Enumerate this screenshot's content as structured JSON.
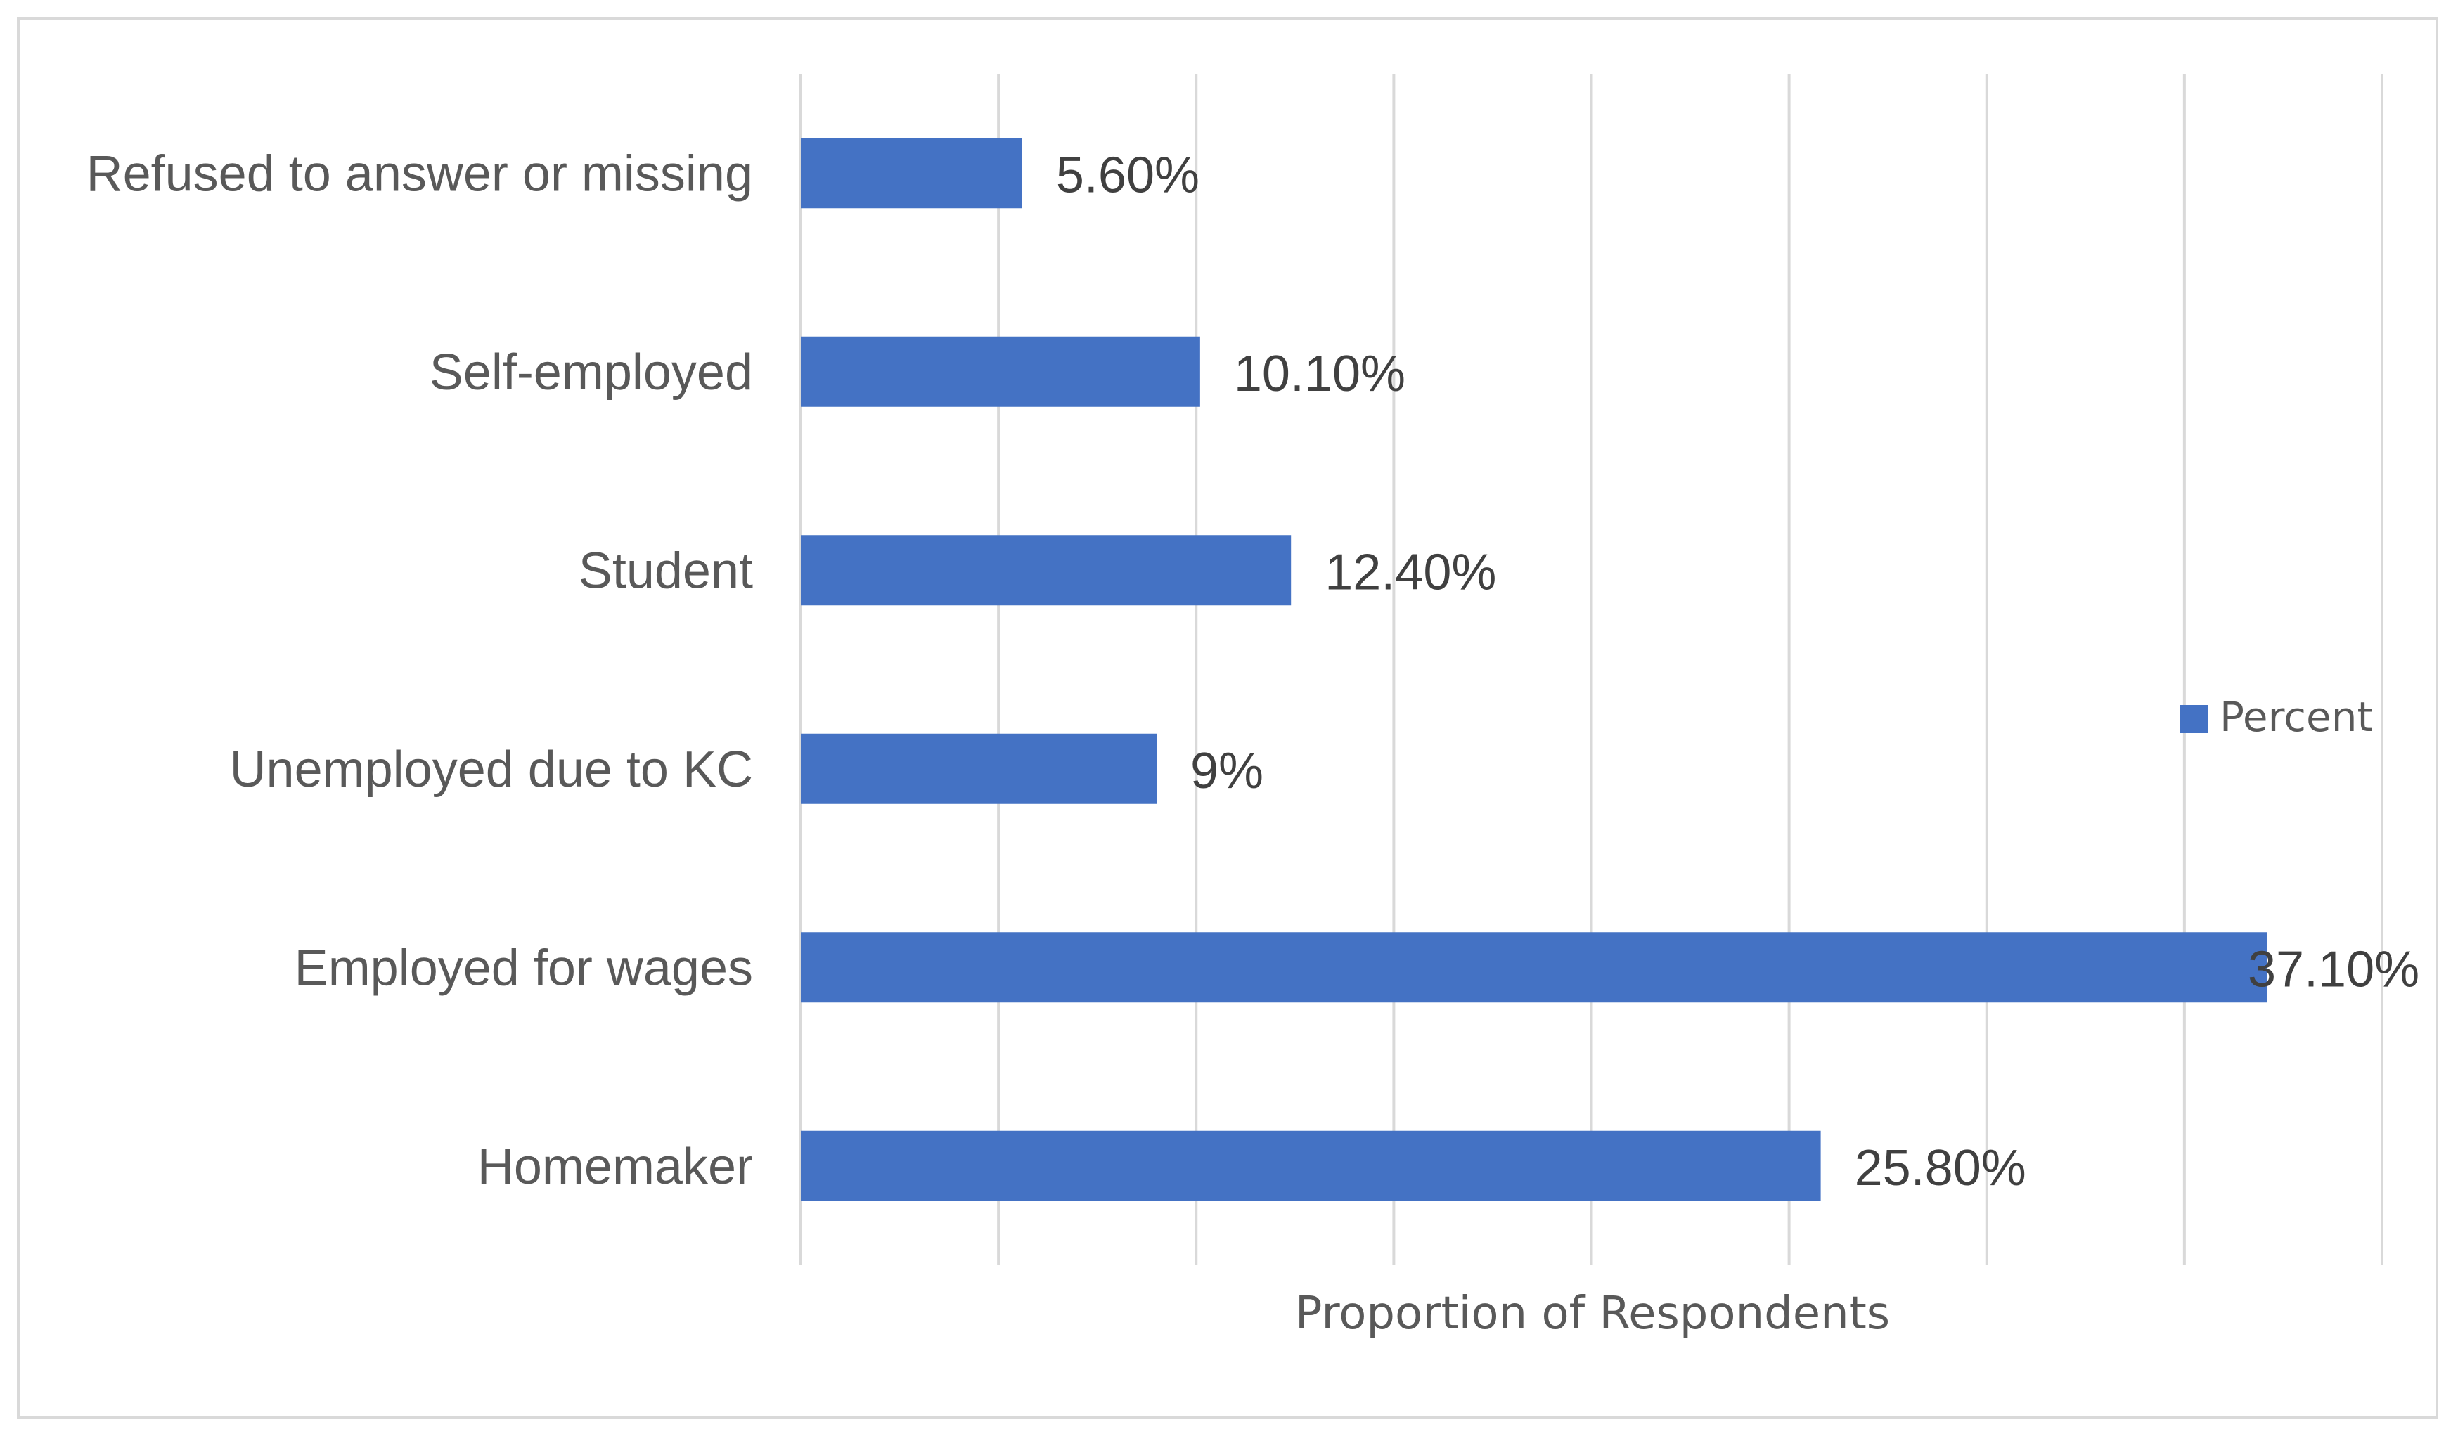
{
  "chart_data": {
    "type": "bar",
    "orientation": "horizontal",
    "categories": [
      "Refused to answer or missing",
      "Self-employed",
      "Student",
      "Unemployed due to KC",
      "Employed for wages",
      "Homemaker"
    ],
    "series": [
      {
        "name": "Percent",
        "values": [
          5.6,
          10.1,
          12.4,
          9,
          37.1,
          25.8
        ],
        "labels": [
          "5.60%",
          "10.10%",
          "12.40%",
          "9%",
          "37.10%",
          "25.80%"
        ],
        "color": "#4472C4"
      }
    ],
    "xlabel": "Proportion of Respondents",
    "ylabel": "",
    "xlim": [
      0,
      40
    ],
    "x_gridline_step": 5,
    "grid": true,
    "x_tick_labels_shown": false,
    "legend": {
      "position": "right",
      "entries": [
        "Percent"
      ]
    },
    "gridline_color": "#d9d9d9"
  }
}
